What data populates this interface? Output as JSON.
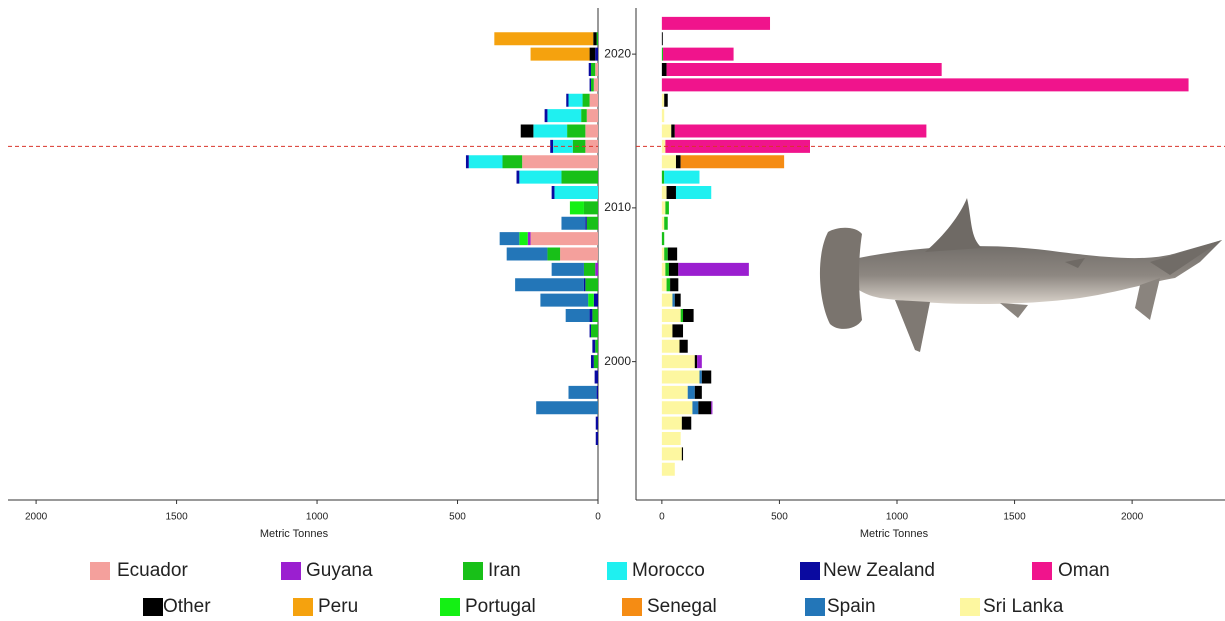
{
  "chart_data": [
    {
      "type": "bar",
      "orientation": "horizontal",
      "stacked": true,
      "xlabel": "Metric Tonnes",
      "xlim": [
        2100,
        0
      ],
      "xticks": [
        0,
        500,
        1000,
        1500,
        2000
      ],
      "ylim": [
        1991,
        2023
      ],
      "hline": 2014,
      "hline_color": "#d9342b",
      "y": [
        1993,
        1994,
        1995,
        1996,
        1997,
        1998,
        1999,
        2000,
        2001,
        2002,
        2003,
        2004,
        2005,
        2006,
        2007,
        2008,
        2009,
        2010,
        2011,
        2012,
        2013,
        2014,
        2015,
        2016,
        2017,
        2018,
        2019,
        2020,
        2021,
        2022
      ],
      "series": [
        {
          "name": "Ecuador",
          "color": "#f4a09c",
          "values": [
            0,
            0,
            0,
            0,
            0,
            0,
            0,
            0,
            0,
            0,
            0,
            0,
            0,
            0,
            135,
            240,
            0,
            0,
            0,
            0,
            270,
            45,
            45,
            40,
            30,
            15,
            10,
            0,
            0,
            0
          ]
        },
        {
          "name": "Guyana",
          "color": "#9b1fd0",
          "values": [
            0,
            0,
            0,
            0,
            0,
            0,
            0,
            0,
            0,
            0,
            0,
            0,
            0,
            10,
            0,
            10,
            0,
            0,
            0,
            0,
            0,
            0,
            0,
            0,
            0,
            0,
            0,
            0,
            0,
            0
          ]
        },
        {
          "name": "Iran",
          "color": "#18c018",
          "values": [
            0,
            0,
            0,
            0,
            0,
            0,
            0,
            15,
            10,
            25,
            20,
            0,
            45,
            40,
            45,
            0,
            40,
            50,
            0,
            130,
            70,
            45,
            65,
            20,
            25,
            10,
            15,
            0,
            5,
            0
          ]
        },
        {
          "name": "Morocco",
          "color": "#1ff0f0",
          "values": [
            0,
            0,
            0,
            0,
            0,
            0,
            0,
            0,
            0,
            0,
            0,
            0,
            0,
            0,
            0,
            0,
            0,
            0,
            155,
            150,
            120,
            70,
            120,
            120,
            50,
            0,
            0,
            0,
            0,
            0
          ]
        },
        {
          "name": "New Zealand",
          "color": "#0a0aa0",
          "values": [
            0,
            0,
            8,
            8,
            0,
            5,
            12,
            10,
            10,
            5,
            10,
            15,
            5,
            0,
            0,
            0,
            5,
            0,
            10,
            10,
            10,
            10,
            0,
            10,
            8,
            5,
            8,
            10,
            0,
            0
          ]
        },
        {
          "name": "Oman",
          "color": "#f0148c",
          "values": [
            0,
            0,
            0,
            0,
            0,
            0,
            0,
            0,
            0,
            0,
            0,
            0,
            0,
            0,
            0,
            0,
            0,
            0,
            0,
            0,
            0,
            0,
            0,
            0,
            0,
            0,
            0,
            0,
            0,
            0
          ]
        },
        {
          "name": "Other",
          "color": "#000000",
          "values": [
            0,
            0,
            0,
            0,
            0,
            0,
            0,
            0,
            0,
            0,
            0,
            0,
            0,
            0,
            0,
            0,
            0,
            0,
            0,
            0,
            0,
            0,
            45,
            0,
            0,
            0,
            0,
            20,
            12,
            0
          ]
        },
        {
          "name": "Peru",
          "color": "#f5a20e",
          "values": [
            0,
            0,
            0,
            0,
            0,
            0,
            0,
            0,
            0,
            0,
            0,
            0,
            0,
            0,
            0,
            0,
            0,
            0,
            0,
            0,
            0,
            0,
            0,
            0,
            0,
            0,
            0,
            210,
            352,
            0
          ]
        },
        {
          "name": "Portugal",
          "color": "#14f014",
          "values": [
            0,
            0,
            0,
            0,
            0,
            0,
            0,
            0,
            0,
            0,
            0,
            20,
            0,
            0,
            0,
            30,
            0,
            50,
            0,
            0,
            0,
            0,
            0,
            0,
            0,
            0,
            0,
            0,
            0,
            0
          ]
        },
        {
          "name": "Senegal",
          "color": "#f58c14",
          "values": [
            0,
            0,
            0,
            0,
            0,
            0,
            0,
            0,
            0,
            0,
            0,
            0,
            0,
            0,
            0,
            0,
            0,
            0,
            0,
            0,
            0,
            0,
            0,
            0,
            0,
            0,
            0,
            0,
            0,
            0
          ]
        },
        {
          "name": "Spain",
          "color": "#2376b8",
          "values": [
            0,
            0,
            0,
            0,
            220,
            100,
            0,
            0,
            0,
            0,
            85,
            170,
            245,
            115,
            145,
            70,
            85,
            0,
            0,
            0,
            0,
            0,
            0,
            0,
            0,
            0,
            0,
            0,
            0,
            0
          ]
        },
        {
          "name": "Sri Lanka",
          "color": "#fdf7a0",
          "values": [
            0,
            0,
            0,
            0,
            0,
            0,
            0,
            0,
            0,
            0,
            0,
            0,
            0,
            0,
            0,
            0,
            0,
            0,
            0,
            0,
            0,
            0,
            0,
            0,
            0,
            0,
            0,
            0,
            0,
            0
          ]
        }
      ]
    },
    {
      "type": "bar",
      "orientation": "horizontal",
      "stacked": true,
      "xlabel": "Metric Tonnes",
      "xlim": [
        -110,
        2395
      ],
      "xticks": [
        0,
        500,
        1000,
        1500,
        2000
      ],
      "ylim": [
        1991,
        2023
      ],
      "yticks": [
        2000,
        2010,
        2020
      ],
      "hline": 2014,
      "hline_color": "#d9342b",
      "y": [
        1993,
        1994,
        1995,
        1996,
        1997,
        1998,
        1999,
        2000,
        2001,
        2002,
        2003,
        2004,
        2005,
        2006,
        2007,
        2008,
        2009,
        2010,
        2011,
        2012,
        2013,
        2014,
        2015,
        2016,
        2017,
        2018,
        2019,
        2020,
        2021,
        2022
      ],
      "series": [
        {
          "name": "Sri Lanka",
          "color": "#fdf7a0",
          "values": [
            55,
            85,
            80,
            85,
            130,
            110,
            160,
            140,
            75,
            45,
            80,
            45,
            20,
            15,
            10,
            0,
            10,
            15,
            20,
            0,
            60,
            15,
            40,
            10,
            10,
            0,
            0,
            0,
            0,
            0
          ]
        },
        {
          "name": "Spain",
          "color": "#2376b8",
          "values": [
            0,
            0,
            0,
            0,
            25,
            30,
            10,
            0,
            0,
            0,
            0,
            10,
            0,
            0,
            0,
            0,
            0,
            0,
            0,
            0,
            0,
            0,
            0,
            0,
            0,
            0,
            0,
            0,
            0,
            0
          ]
        },
        {
          "name": "Iran",
          "color": "#18c018",
          "values": [
            0,
            0,
            0,
            0,
            0,
            0,
            0,
            0,
            0,
            0,
            10,
            0,
            15,
            15,
            15,
            10,
            15,
            15,
            0,
            10,
            0,
            0,
            0,
            0,
            0,
            0,
            0,
            5,
            0,
            0
          ]
        },
        {
          "name": "Other",
          "color": "#000000",
          "values": [
            0,
            5,
            0,
            40,
            55,
            30,
            40,
            10,
            35,
            45,
            45,
            25,
            35,
            40,
            40,
            0,
            0,
            0,
            40,
            0,
            20,
            0,
            15,
            0,
            15,
            0,
            20,
            0,
            4,
            0
          ]
        },
        {
          "name": "Guyana",
          "color": "#9b1fd0",
          "values": [
            0,
            0,
            0,
            0,
            5,
            0,
            0,
            20,
            0,
            0,
            0,
            0,
            0,
            300,
            0,
            0,
            0,
            0,
            0,
            0,
            0,
            0,
            0,
            0,
            0,
            0,
            0,
            0,
            0,
            0
          ]
        },
        {
          "name": "Morocco",
          "color": "#1ff0f0",
          "values": [
            0,
            0,
            0,
            0,
            0,
            0,
            0,
            0,
            0,
            0,
            0,
            0,
            0,
            0,
            0,
            0,
            0,
            0,
            150,
            150,
            0,
            0,
            0,
            0,
            0,
            0,
            0,
            0,
            0,
            0
          ]
        },
        {
          "name": "Senegal",
          "color": "#f58c14",
          "values": [
            0,
            0,
            0,
            0,
            0,
            0,
            0,
            0,
            0,
            0,
            0,
            0,
            0,
            0,
            0,
            0,
            0,
            0,
            0,
            0,
            440,
            0,
            0,
            0,
            0,
            0,
            0,
            0,
            0,
            0
          ]
        },
        {
          "name": "Oman",
          "color": "#f0148c",
          "values": [
            0,
            0,
            0,
            0,
            0,
            0,
            0,
            0,
            0,
            0,
            0,
            0,
            0,
            0,
            0,
            0,
            0,
            0,
            0,
            0,
            0,
            615,
            1070,
            0,
            0,
            2240,
            1170,
            300,
            0,
            460
          ]
        }
      ]
    }
  ]
}
